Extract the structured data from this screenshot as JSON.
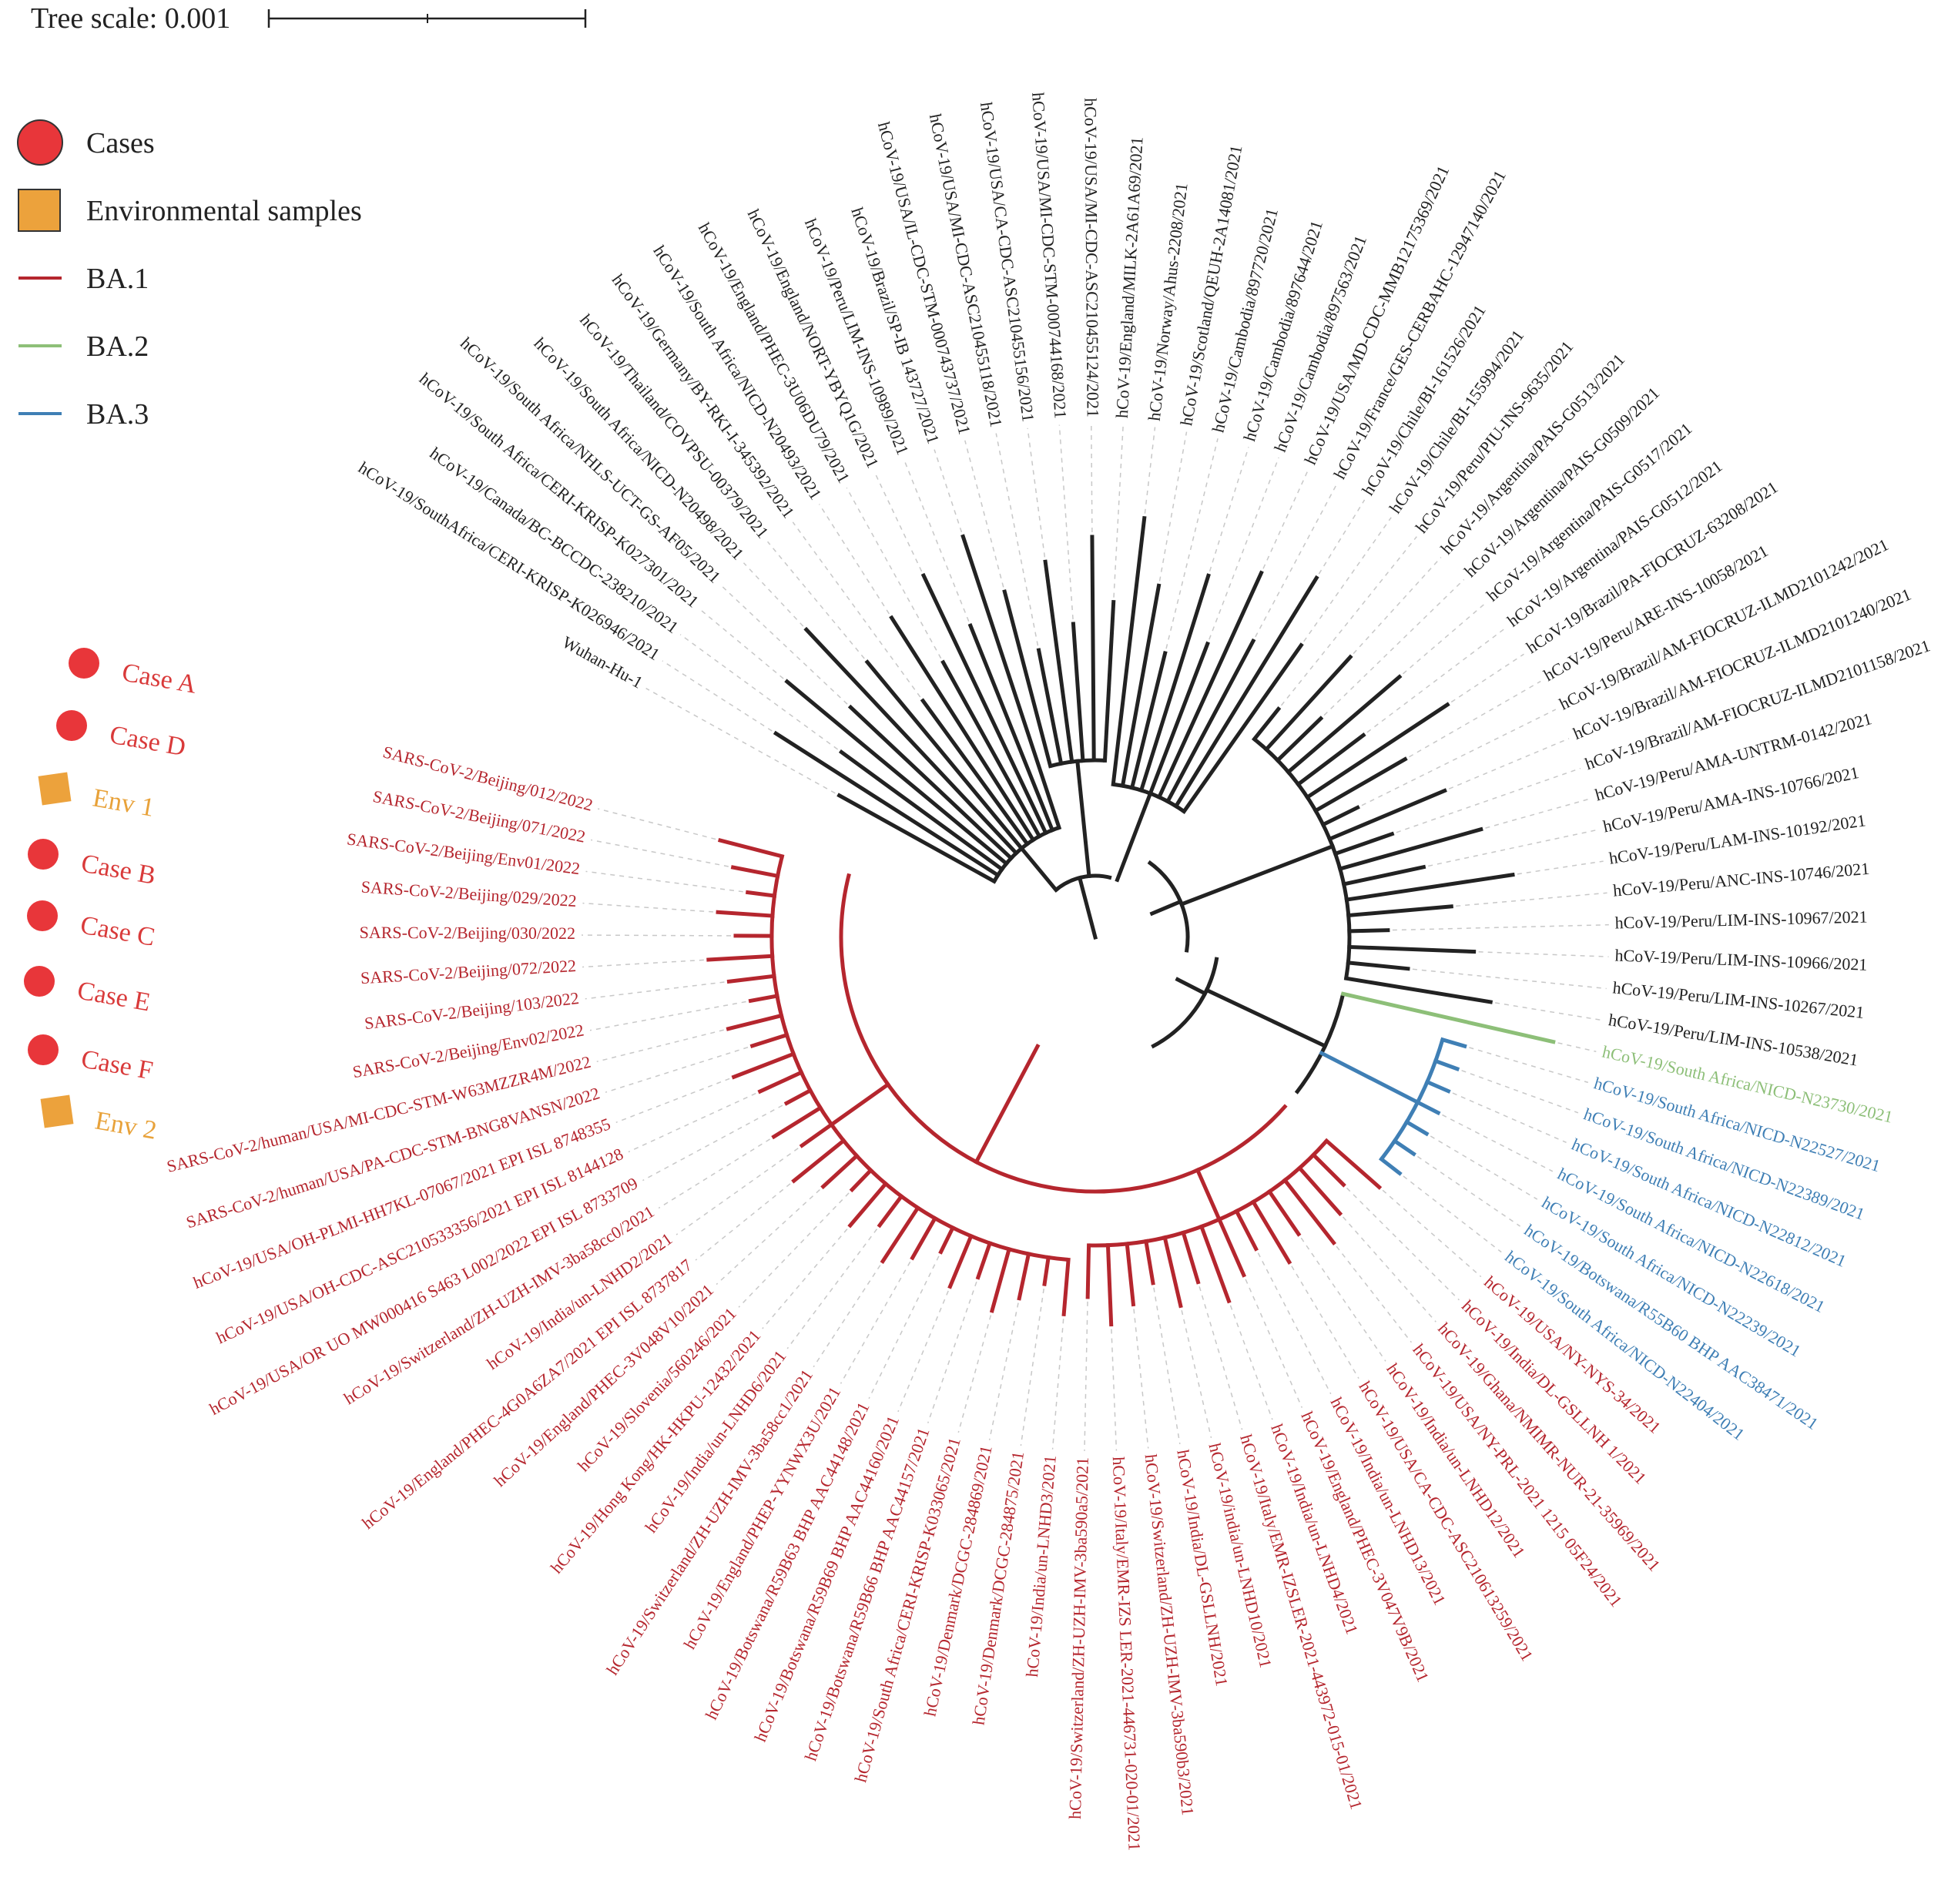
{
  "tree_scale": {
    "label": "Tree scale: 0.001"
  },
  "legend": [
    {
      "label": "Cases",
      "shape": "circle",
      "color": "#e8363a"
    },
    {
      "label": "Environmental samples",
      "shape": "square",
      "color": "#eca23c"
    },
    {
      "label": "BA.1",
      "shape": "line",
      "color": "#b5262e"
    },
    {
      "label": "BA.2",
      "shape": "line",
      "color": "#8dbf78"
    },
    {
      "label": "BA.3",
      "shape": "line",
      "color": "#3f7fb5"
    }
  ],
  "colors": {
    "other": "#222222",
    "BA.1": "#b5262e",
    "BA.2": "#8dbf78",
    "BA.3": "#3f7fb5",
    "case": "#e8363a",
    "env": "#eca23c",
    "case_text": "#d93a3a",
    "env_text": "#e8a23a"
  },
  "annotations": [
    {
      "label": "Case A",
      "type": "case"
    },
    {
      "label": "Case D",
      "type": "case"
    },
    {
      "label": "Env 1",
      "type": "env"
    },
    {
      "label": "Case B",
      "type": "case"
    },
    {
      "label": "Case C",
      "type": "case"
    },
    {
      "label": "Case E",
      "type": "case"
    },
    {
      "label": "Case F",
      "type": "case"
    },
    {
      "label": "Env 2",
      "type": "env"
    }
  ],
  "leaves": [
    {
      "label": "Wuhan-Hu-1",
      "lineage": "other"
    },
    {
      "label": "hCoV-19/SouthAfrica/CERI-KRISP-K026946/2021",
      "lineage": "other"
    },
    {
      "label": "hCoV-19/Canada/BC-BCCDC-238210/2021",
      "lineage": "other"
    },
    {
      "label": "hCoV-19/South Africa/CERI-KRISP-K027301/2021",
      "lineage": "other"
    },
    {
      "label": "hCoV-19/South Africa/NHLS-UCT-GS-AF05/2021",
      "lineage": "other"
    },
    {
      "label": "hCoV-19/South Africa/NICD-N20498/2021",
      "lineage": "other"
    },
    {
      "label": "hCoV-19/Thailand/COVPSU-00379/2021",
      "lineage": "other"
    },
    {
      "label": "hCoV-19/Germany/BY-RKI-I-345392/2021",
      "lineage": "other"
    },
    {
      "label": "hCoV-19/South Africa/NICD-N20493/2021",
      "lineage": "other"
    },
    {
      "label": "hCoV-19/England/PHEC-3U06DU79/2021",
      "lineage": "other"
    },
    {
      "label": "hCoV-19/England/NORT-YBYQ1G/2021",
      "lineage": "other"
    },
    {
      "label": "hCoV-19/Peru/LIM-INS-10989/2021",
      "lineage": "other"
    },
    {
      "label": "hCoV-19/Brazil/SP-IB 143727/2021",
      "lineage": "other"
    },
    {
      "label": "hCoV-19/USA/IL-CDC-STM-000743737/2021",
      "lineage": "other"
    },
    {
      "label": "hCoV-19/USA/MI-CDC-ASC210455118/2021",
      "lineage": "other"
    },
    {
      "label": "hCoV-19/USA/CA-CDC-ASC210455156/2021",
      "lineage": "other"
    },
    {
      "label": "hCoV-19/USA/MI-CDC-STM-000744168/2021",
      "lineage": "other"
    },
    {
      "label": "hCoV-19/USA/MI-CDC-ASC210455124/2021",
      "lineage": "other"
    },
    {
      "label": "hCoV-19/England/MILK-2A61A69/2021",
      "lineage": "other"
    },
    {
      "label": "hCoV-19/Norway/Ahus-2208/2021",
      "lineage": "other"
    },
    {
      "label": "hCoV-19/Scotland/QEUH-2A14081/2021",
      "lineage": "other"
    },
    {
      "label": "hCoV-19/Cambodia/897720/2021",
      "lineage": "other"
    },
    {
      "label": "hCoV-19/Cambodia/897644/2021",
      "lineage": "other"
    },
    {
      "label": "hCoV-19/Cambodia/897563/2021",
      "lineage": "other"
    },
    {
      "label": "hCoV-19/USA/MD-CDC-MMB12175369/2021",
      "lineage": "other"
    },
    {
      "label": "hCoV-19/France/GES-CERBAHC-12947140/2021",
      "lineage": "other"
    },
    {
      "label": "hCoV-19/Chile/BI-161526/2021",
      "lineage": "other"
    },
    {
      "label": "hCoV-19/Chile/BI-155994/2021",
      "lineage": "other"
    },
    {
      "label": "hCoV-19/Peru/PIU-INS-9635/2021",
      "lineage": "other"
    },
    {
      "label": "hCoV-19/Argentina/PAIS-G0513/2021",
      "lineage": "other"
    },
    {
      "label": "hCoV-19/Argentina/PAIS-G0509/2021",
      "lineage": "other"
    },
    {
      "label": "hCoV-19/Argentina/PAIS-G0517/2021",
      "lineage": "other"
    },
    {
      "label": "hCoV-19/Argentina/PAIS-G0512/2021",
      "lineage": "other"
    },
    {
      "label": "hCoV-19/Brazil/PA-FIOCRUZ-63208/2021",
      "lineage": "other"
    },
    {
      "label": "hCoV-19/Peru/ARE-INS-10058/2021",
      "lineage": "other"
    },
    {
      "label": "hCoV-19/Brazil/AM-FIOCRUZ-ILMD2101242/2021",
      "lineage": "other"
    },
    {
      "label": "hCoV-19/Brazil/AM-FIOCRUZ-ILMD2101240/2021",
      "lineage": "other"
    },
    {
      "label": "hCoV-19/Brazil/AM-FIOCRUZ-ILMD2101158/2021",
      "lineage": "other"
    },
    {
      "label": "hCoV-19/Peru/AMA-UNTRM-0142/2021",
      "lineage": "other"
    },
    {
      "label": "hCoV-19/Peru/AMA-INS-10766/2021",
      "lineage": "other"
    },
    {
      "label": "hCoV-19/Peru/LAM-INS-10192/2021",
      "lineage": "other"
    },
    {
      "label": "hCoV-19/Peru/ANC-INS-10746/2021",
      "lineage": "other"
    },
    {
      "label": "hCoV-19/Peru/LIM-INS-10967/2021",
      "lineage": "other"
    },
    {
      "label": "hCoV-19/Peru/LIM-INS-10966/2021",
      "lineage": "other"
    },
    {
      "label": "hCoV-19/Peru/LIM-INS-10267/2021",
      "lineage": "other"
    },
    {
      "label": "hCoV-19/Peru/LIM-INS-10538/2021",
      "lineage": "other"
    },
    {
      "label": "hCoV-19/South Africa/NICD-N23730/2021",
      "lineage": "BA.2"
    },
    {
      "label": "hCoV-19/South Africa/NICD-N22527/2021",
      "lineage": "BA.3"
    },
    {
      "label": "hCoV-19/South Africa/NICD-N22389/2021",
      "lineage": "BA.3"
    },
    {
      "label": "hCoV-19/South Africa/NICD-N22812/2021",
      "lineage": "BA.3"
    },
    {
      "label": "hCoV-19/South Africa/NICD-N22618/2021",
      "lineage": "BA.3"
    },
    {
      "label": "hCoV-19/South Africa/NICD-N22239/2021",
      "lineage": "BA.3"
    },
    {
      "label": "hCoV-19/Botswana/R55B60 BHP AAC38471/2021",
      "lineage": "BA.3"
    },
    {
      "label": "hCoV-19/South Africa/NICD-N22404/2021",
      "lineage": "BA.3"
    },
    {
      "label": "hCoV-19/USA/NY-NYS-34/2021",
      "lineage": "BA.1"
    },
    {
      "label": "hCoV-19/India/DL-GSLLNH 1/2021",
      "lineage": "BA.1"
    },
    {
      "label": "hCoV-19/Ghana/NMIMR-NUR-21-35969/2021",
      "lineage": "BA.1"
    },
    {
      "label": "hCoV-19/USA/NY-PRL-2021 1215 05F24/2021",
      "lineage": "BA.1"
    },
    {
      "label": "hCoV-19/India/un-LNHD12/2021",
      "lineage": "BA.1"
    },
    {
      "label": "hCoV-19/USA/CA-CDC-ASC210613259/2021",
      "lineage": "BA.1"
    },
    {
      "label": "hCoV-19/India/un-LNHD13/2021",
      "lineage": "BA.1"
    },
    {
      "label": "hCoV-19/England/PHEC-3V047V9B/2021",
      "lineage": "BA.1"
    },
    {
      "label": "hCoV-19/India/un-LNHD4/2021",
      "lineage": "BA.1"
    },
    {
      "label": "hCoV-19/Italy/EMR-IZSLER-2021-443972-015-01/2021",
      "lineage": "BA.1"
    },
    {
      "label": "hCoV-19/india/un-LNHD10/2021",
      "lineage": "BA.1"
    },
    {
      "label": "hCoV-19/India/DL-GSLLNH/2021",
      "lineage": "BA.1"
    },
    {
      "label": "hCoV-19/Switzerland/ZH-UZH-IMV-3ba590b3/2021",
      "lineage": "BA.1"
    },
    {
      "label": "hCoV-19/Italy/EMR-IZS LER-2021-446731-020-01/2021",
      "lineage": "BA.1"
    },
    {
      "label": "hCoV-19/Switzerland/ZH-UZH-IMV-3ba590a5/2021",
      "lineage": "BA.1"
    },
    {
      "label": "hCoV-19/India/un-LNHD3/2021",
      "lineage": "BA.1"
    },
    {
      "label": "hCoV-19/Denmark/DCGC-284875/2021",
      "lineage": "BA.1"
    },
    {
      "label": "hCoV-19/Denmark/DCGC-284869/2021",
      "lineage": "BA.1"
    },
    {
      "label": "hCoV-19/South Africa/CERI-KRISP-K033065/2021",
      "lineage": "BA.1"
    },
    {
      "label": "hCoV-19/Botswana/R59B66 BHP AAC44157/2021",
      "lineage": "BA.1"
    },
    {
      "label": "hCoV-19/Botswana/R59B69 BHP AAC44160/2021",
      "lineage": "BA.1"
    },
    {
      "label": "hCoV-19/Botswana/R59B63 BHP AAC44148/2021",
      "lineage": "BA.1"
    },
    {
      "label": "hCoV-19/England/PHEP-YYNWX3U/2021",
      "lineage": "BA.1"
    },
    {
      "label": "hCoV-19/Switzerland/ZH-UZH-IMV-3ba58cc1/2021",
      "lineage": "BA.1"
    },
    {
      "label": "hCoV-19/India/un-LNHD6/2021",
      "lineage": "BA.1"
    },
    {
      "label": "hCoV-19/Hong Kong/HK-HKPU-12432/2021",
      "lineage": "BA.1"
    },
    {
      "label": "hCoV-19/Slovenia/560246/2021",
      "lineage": "BA.1"
    },
    {
      "label": "hCoV-19/England/PHEC-3V048V10/2021",
      "lineage": "BA.1"
    },
    {
      "label": "hCoV-19/England/PHEC-4G0A6ZA7/2021 EPI ISL 8737817",
      "lineage": "BA.1"
    },
    {
      "label": "hCoV-19/India/un-LNHD2/2021",
      "lineage": "BA.1"
    },
    {
      "label": "hCoV-19/Switzerland/ZH-UZH-IMV-3ba58cc0/2021",
      "lineage": "BA.1"
    },
    {
      "label": "hCoV-19/USA/OR UO MW000416 S463 L002/2022 EPI ISL 8733709",
      "lineage": "BA.1"
    },
    {
      "label": "hCoV-19/USA/OH-CDC-ASC210533356/2021 EPI ISL 8144128",
      "lineage": "BA.1"
    },
    {
      "label": "hCoV-19/USA/OH-PLMI-HH7KL-07067/2021 EPI ISL 8748355",
      "lineage": "BA.1"
    },
    {
      "label": "SARS-CoV-2/human/USA/PA-CDC-STM-BNG8VANSN/2022",
      "lineage": "BA.1"
    },
    {
      "label": "SARS-CoV-2/human/USA/MI-CDC-STM-W63MZZR4M/2022",
      "lineage": "BA.1"
    },
    {
      "label": "SARS-CoV-2/Beijing/Env02/2022",
      "lineage": "BA.1"
    },
    {
      "label": "SARS-CoV-2/Beijing/103/2022",
      "lineage": "BA.1"
    },
    {
      "label": "SARS-CoV-2/Beijing/072/2022",
      "lineage": "BA.1"
    },
    {
      "label": "SARS-CoV-2/Beijing/030/2022",
      "lineage": "BA.1"
    },
    {
      "label": "SARS-CoV-2/Beijing/029/2022",
      "lineage": "BA.1"
    },
    {
      "label": "SARS-CoV-2/Beijing/Env01/2022",
      "lineage": "BA.1"
    },
    {
      "label": "SARS-CoV-2/Beijing/071/2022",
      "lineage": "BA.1"
    },
    {
      "label": "SARS-CoV-2/Beijing/012/2022",
      "lineage": "BA.1"
    }
  ]
}
